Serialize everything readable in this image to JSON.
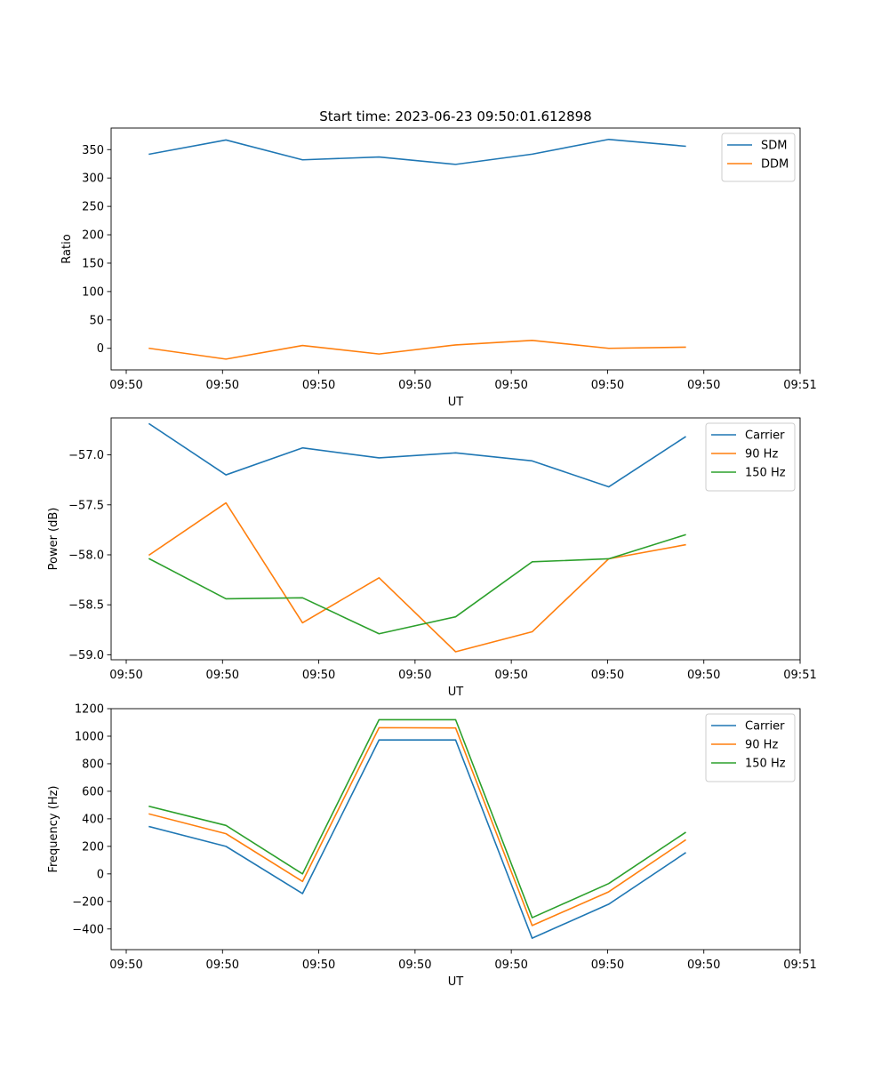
{
  "colors": {
    "blue": "#1f77b4",
    "orange": "#ff7f0e",
    "green": "#2ca02c"
  },
  "chart_data": [
    {
      "type": "line",
      "title": "Start time: 2023-06-23 09:50:01.612898",
      "xlabel": "UT",
      "ylabel": "Ratio",
      "x_tick_labels": [
        "09:50",
        "09:50",
        "09:50",
        "09:50",
        "09:50",
        "09:50",
        "09:50",
        "09:51"
      ],
      "x": [
        1,
        2,
        3,
        4,
        5,
        6,
        7,
        8
      ],
      "xlim": [
        0.5,
        9.5
      ],
      "ylim": [
        -38,
        388
      ],
      "y_ticks": [
        0,
        50,
        100,
        150,
        200,
        250,
        300,
        350
      ],
      "legend_position": "upper right",
      "series": [
        {
          "name": "SDM",
          "color": "#1f77b4",
          "values": [
            342,
            367,
            332,
            337,
            324,
            342,
            368,
            356
          ]
        },
        {
          "name": "DDM",
          "color": "#ff7f0e",
          "values": [
            0,
            -19,
            5,
            -10,
            6,
            14,
            0,
            2
          ]
        }
      ]
    },
    {
      "type": "line",
      "title": "",
      "xlabel": "UT",
      "ylabel": "Power (dB)",
      "x_tick_labels": [
        "09:50",
        "09:50",
        "09:50",
        "09:50",
        "09:50",
        "09:50",
        "09:50",
        "09:51"
      ],
      "x": [
        1,
        2,
        3,
        4,
        5,
        6,
        7,
        8
      ],
      "xlim": [
        0.5,
        9.5
      ],
      "ylim": [
        -59.05,
        -56.63
      ],
      "y_ticks": [
        -59.0,
        -58.5,
        -58.0,
        -57.5,
        -57.0
      ],
      "y_tick_labels": [
        "−59.0",
        "−58.5",
        "−58.0",
        "−57.5",
        "−57.0"
      ],
      "legend_position": "upper right",
      "series": [
        {
          "name": "Carrier",
          "color": "#1f77b4",
          "values": [
            -56.69,
            -57.2,
            -56.93,
            -57.03,
            -56.98,
            -57.06,
            -57.32,
            -56.82
          ]
        },
        {
          "name": "90 Hz",
          "color": "#ff7f0e",
          "values": [
            -58.0,
            -57.48,
            -58.68,
            -58.23,
            -58.97,
            -58.77,
            -58.04,
            -57.9
          ]
        },
        {
          "name": "150 Hz",
          "color": "#2ca02c",
          "values": [
            -58.04,
            -58.44,
            -58.43,
            -58.79,
            -58.62,
            -58.07,
            -58.04,
            -57.8
          ]
        }
      ]
    },
    {
      "type": "line",
      "title": "",
      "xlabel": "UT",
      "ylabel": "Frequency (Hz)",
      "x_tick_labels": [
        "09:50",
        "09:50",
        "09:50",
        "09:50",
        "09:50",
        "09:50",
        "09:50",
        "09:51"
      ],
      "x": [
        1,
        2,
        3,
        4,
        5,
        6,
        7,
        8
      ],
      "xlim": [
        0.5,
        9.5
      ],
      "ylim": [
        -550,
        1200
      ],
      "y_ticks": [
        -400,
        -200,
        0,
        200,
        400,
        600,
        800,
        1000,
        1200
      ],
      "y_tick_labels": [
        "−400",
        "−200",
        "0",
        "200",
        "400",
        "600",
        "800",
        "1000",
        "1200"
      ],
      "legend_position": "upper right",
      "series": [
        {
          "name": "Carrier",
          "color": "#1f77b4",
          "values": [
            343,
            200,
            -143,
            973,
            973,
            -467,
            -220,
            152
          ]
        },
        {
          "name": "90 Hz",
          "color": "#ff7f0e",
          "values": [
            435,
            292,
            -55,
            1062,
            1060,
            -375,
            -130,
            245
          ]
        },
        {
          "name": "150 Hz",
          "color": "#2ca02c",
          "values": [
            490,
            352,
            0,
            1120,
            1120,
            -318,
            -70,
            300
          ]
        }
      ]
    }
  ]
}
